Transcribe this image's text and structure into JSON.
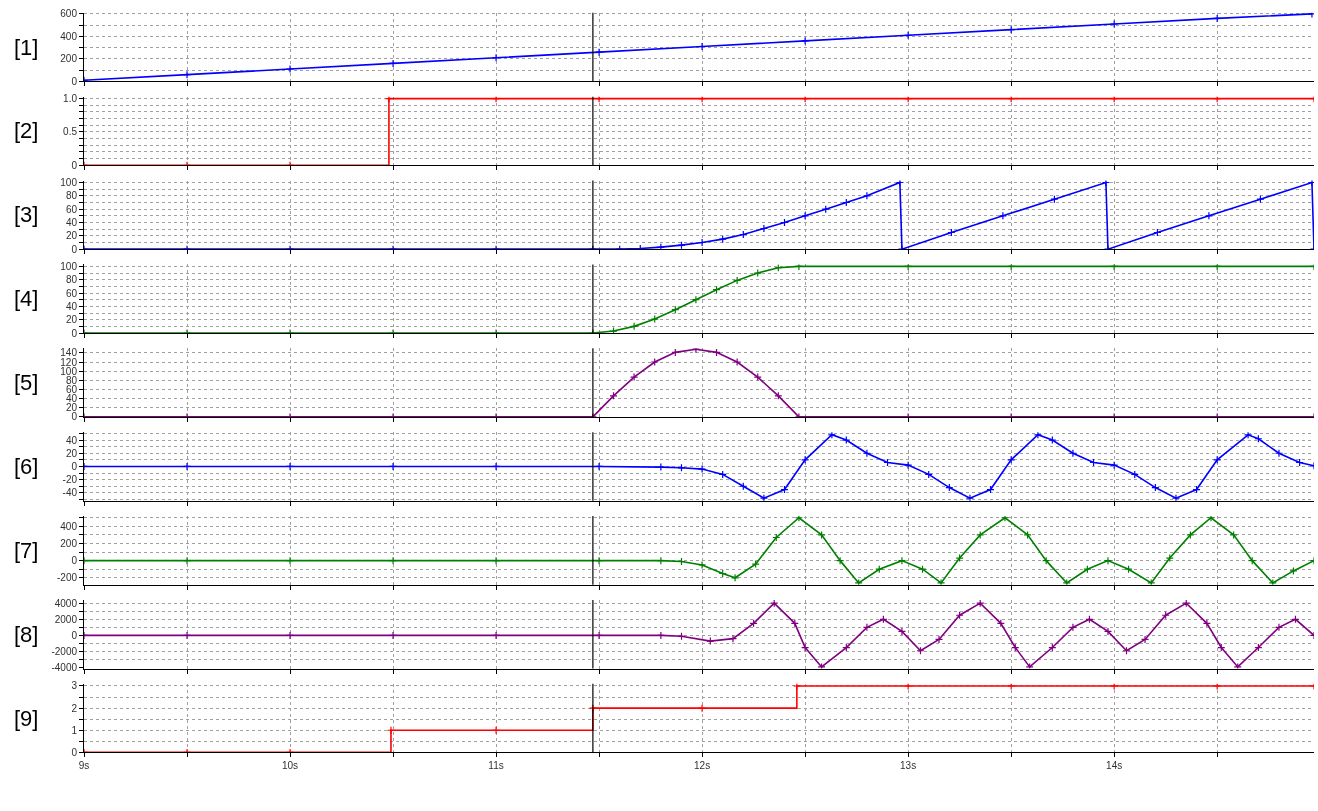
{
  "chart_data": [
    {
      "type": "line",
      "ylabel": "[1]",
      "xlim": [
        9,
        14.97
      ],
      "ylim": [
        0,
        610
      ],
      "yticks": [
        0,
        {
          "value": 100,
          "label": null
        },
        200,
        {
          "value": 300,
          "label": null
        },
        400,
        {
          "value": 500,
          "label": null
        },
        600
      ],
      "tick_labels": "y",
      "grid": true,
      "marker": "cross",
      "ref_lines": [
        {
          "axis": "x",
          "value": 11.47,
          "color": "#000000"
        }
      ],
      "series": [
        {
          "color": "#0000ff",
          "x": [
            9,
            9.5,
            10,
            10.5,
            11,
            11.5,
            12,
            12.5,
            13,
            13.5,
            14,
            14.5,
            14.96
          ],
          "values": [
            10,
            60,
            110,
            160,
            210,
            260,
            310,
            360,
            410,
            460,
            510,
            560,
            600
          ]
        }
      ]
    },
    {
      "type": "step",
      "ylabel": "[2]",
      "xlim": [
        9,
        14.97
      ],
      "ylim": [
        0,
        1.03
      ],
      "yticks": [
        0,
        {
          "value": 0.1,
          "label": null
        },
        {
          "value": 0.2,
          "label": null
        },
        {
          "value": 0.3,
          "label": null
        },
        {
          "value": 0.4,
          "label": null
        },
        0.5,
        {
          "value": 0.6,
          "label": null
        },
        {
          "value": 0.7,
          "label": null
        },
        {
          "value": 0.8,
          "label": null
        },
        {
          "value": 0.9,
          "label": null
        },
        {
          "value": 1,
          "label": "1.0"
        }
      ],
      "tick_labels": "y",
      "grid": true,
      "marker": "cross",
      "ref_lines": [
        {
          "axis": "x",
          "value": 11.47,
          "color": "#000000"
        }
      ],
      "series": [
        {
          "color": "#ff0000",
          "x": [
            9,
            9.5,
            10,
            10.48,
            11,
            11.5,
            12,
            12.5,
            13,
            13.5,
            14,
            14.5,
            14.97
          ],
          "values": [
            0,
            0,
            0,
            1,
            1,
            1,
            1,
            1,
            1,
            1,
            1,
            1,
            1
          ]
        }
      ]
    },
    {
      "type": "line",
      "ylabel": "[3]",
      "xlim": [
        9,
        14.97
      ],
      "ylim": [
        0,
        103
      ],
      "yticks": [
        0,
        {
          "value": 10,
          "label": null
        },
        20,
        {
          "value": 30,
          "label": null
        },
        40,
        {
          "value": 50,
          "label": null
        },
        60,
        {
          "value": 70,
          "label": null
        },
        80,
        {
          "value": 90,
          "label": null
        },
        100
      ],
      "tick_labels": "y",
      "grid": true,
      "marker": "cross",
      "ref_lines": [
        {
          "axis": "x",
          "value": 11.47,
          "color": "#000000"
        }
      ],
      "series": [
        {
          "color": "#0000ff",
          "x": [
            9,
            9.5,
            10,
            10.5,
            11,
            11.47,
            11.6,
            11.7,
            11.8,
            11.9,
            12.0,
            12.1,
            12.2,
            12.3,
            12.4,
            12.5,
            12.6,
            12.7,
            12.8,
            12.96,
            12.97,
            13.21,
            13.46,
            13.71,
            13.96,
            13.97,
            14.21,
            14.46,
            14.71,
            14.96,
            14.97
          ],
          "values": [
            0,
            0,
            0,
            0,
            0,
            0,
            0,
            1,
            3,
            6,
            10,
            15,
            22,
            31,
            40,
            50,
            60,
            70,
            80,
            100,
            0,
            25,
            50,
            75,
            100,
            0,
            25,
            50,
            75,
            100,
            0
          ]
        }
      ]
    },
    {
      "type": "line",
      "ylabel": "[4]",
      "xlim": [
        9,
        14.97
      ],
      "ylim": [
        0,
        103
      ],
      "yticks": [
        0,
        {
          "value": 10,
          "label": null
        },
        20,
        {
          "value": 30,
          "label": null
        },
        40,
        {
          "value": 50,
          "label": null
        },
        60,
        {
          "value": 70,
          "label": null
        },
        80,
        {
          "value": 90,
          "label": null
        },
        100
      ],
      "tick_labels": "y",
      "grid": true,
      "marker": "cross",
      "ref_lines": [
        {
          "axis": "x",
          "value": 11.47,
          "color": "#000000"
        }
      ],
      "series": [
        {
          "color": "#008000",
          "x": [
            9,
            9.5,
            10,
            10.5,
            11,
            11.47,
            11.57,
            11.67,
            11.77,
            11.87,
            11.97,
            12.07,
            12.17,
            12.27,
            12.37,
            12.47,
            13,
            13.5,
            14,
            14.5,
            14.97
          ],
          "values": [
            0,
            0,
            0,
            0,
            0,
            0,
            3,
            10,
            21,
            35,
            50,
            65,
            79,
            90,
            98,
            100,
            100,
            100,
            100,
            100,
            100
          ]
        }
      ]
    },
    {
      "type": "line",
      "ylabel": "[5]",
      "xlim": [
        9,
        14.97
      ],
      "ylim": [
        0,
        150
      ],
      "yticks": [
        0,
        20,
        40,
        60,
        80,
        100,
        120,
        140
      ],
      "tick_labels": "y",
      "grid": true,
      "marker": "cross",
      "ref_lines": [
        {
          "axis": "x",
          "value": 11.47,
          "color": "#000000"
        }
      ],
      "series": [
        {
          "color": "#800080",
          "x": [
            9,
            9.5,
            10,
            10.5,
            11,
            11.47,
            11.57,
            11.67,
            11.77,
            11.87,
            11.97,
            12.07,
            12.17,
            12.27,
            12.37,
            12.47,
            13,
            13.5,
            14,
            14.5,
            14.97
          ],
          "values": [
            0,
            0,
            0,
            0,
            0,
            0,
            46,
            87,
            120,
            141,
            148,
            141,
            120,
            87,
            46,
            0,
            0,
            0,
            0,
            0,
            0
          ]
        }
      ]
    },
    {
      "type": "line",
      "ylabel": "[6]",
      "xlim": [
        9,
        14.97
      ],
      "ylim": [
        -52,
        52
      ],
      "yticks": [
        {
          "value": -50,
          "label": null
        },
        -40,
        {
          "value": -30,
          "label": null
        },
        -20,
        {
          "value": -10,
          "label": null
        },
        0,
        {
          "value": 10,
          "label": null
        },
        20,
        {
          "value": 30,
          "label": null
        },
        40,
        {
          "value": 50,
          "label": null
        }
      ],
      "tick_labels": "y",
      "grid": true,
      "marker": "cross",
      "ref_lines": [
        {
          "axis": "x",
          "value": 11.47,
          "color": "#000000"
        }
      ],
      "series": [
        {
          "color": "#0000ff",
          "x": [
            9,
            9.5,
            10,
            10.5,
            11,
            11.5,
            11.8,
            11.9,
            12.0,
            12.1,
            12.2,
            12.3,
            12.4,
            12.5,
            12.63,
            12.7,
            12.8,
            12.9,
            13.0,
            13.1,
            13.2,
            13.3,
            13.4,
            13.5,
            13.63,
            13.7,
            13.8,
            13.9,
            14.0,
            14.1,
            14.2,
            14.3,
            14.4,
            14.5,
            14.65,
            14.7,
            14.8,
            14.9,
            14.97
          ],
          "values": [
            0,
            0,
            0,
            0,
            0,
            0,
            -1,
            -2,
            -4,
            -12,
            -30,
            -48,
            -35,
            10,
            48,
            40,
            20,
            6,
            2,
            -12,
            -32,
            -48,
            -35,
            10,
            48,
            40,
            20,
            6,
            2,
            -12,
            -32,
            -48,
            -35,
            10,
            48,
            42,
            20,
            6,
            1
          ]
        }
      ]
    },
    {
      "type": "line",
      "ylabel": "[7]",
      "xlim": [
        9,
        14.97
      ],
      "ylim": [
        -280,
        520
      ],
      "yticks": [
        -200,
        {
          "value": -100,
          "label": null
        },
        0,
        {
          "value": 100,
          "label": null
        },
        200,
        {
          "value": 300,
          "label": null
        },
        400,
        {
          "value": 500,
          "label": null
        }
      ],
      "tick_labels": "y",
      "grid": true,
      "marker": "cross",
      "ref_lines": [
        {
          "axis": "x",
          "value": 11.47,
          "color": "#000000"
        }
      ],
      "series": [
        {
          "color": "#008000",
          "x": [
            9,
            9.5,
            10,
            10.5,
            11,
            11.5,
            11.8,
            11.9,
            12.0,
            12.1,
            12.16,
            12.26,
            12.36,
            12.47,
            12.58,
            12.67,
            12.76,
            12.86,
            12.97,
            13.07,
            13.16,
            13.25,
            13.35,
            13.47,
            13.58,
            13.67,
            13.77,
            13.87,
            13.97,
            14.07,
            14.18,
            14.27,
            14.37,
            14.47,
            14.58,
            14.67,
            14.77,
            14.87,
            14.97
          ],
          "values": [
            0,
            0,
            0,
            0,
            0,
            0,
            0,
            -10,
            -50,
            -150,
            -200,
            -40,
            270,
            500,
            300,
            0,
            -260,
            -100,
            0,
            -100,
            -260,
            30,
            300,
            500,
            300,
            0,
            -260,
            -100,
            0,
            -100,
            -260,
            30,
            300,
            500,
            300,
            0,
            -260,
            -120,
            0
          ]
        }
      ]
    },
    {
      "type": "line",
      "ylabel": "[8]",
      "xlim": [
        9,
        14.97
      ],
      "ylim": [
        -4100,
        4400
      ],
      "yticks": [
        -4000,
        {
          "value": -3000,
          "label": null
        },
        -2000,
        {
          "value": -1000,
          "label": null
        },
        0,
        {
          "value": 1000,
          "label": null
        },
        2000,
        {
          "value": 3000,
          "label": null
        },
        4000
      ],
      "tick_labels": "y",
      "grid": true,
      "marker": "cross",
      "ref_lines": [
        {
          "axis": "x",
          "value": 11.47,
          "color": "#000000"
        }
      ],
      "series": [
        {
          "color": "#800080",
          "x": [
            9,
            9.5,
            10,
            10.5,
            11,
            11.5,
            11.8,
            11.9,
            12.04,
            12.15,
            12.25,
            12.35,
            12.45,
            12.5,
            12.58,
            12.7,
            12.8,
            12.88,
            12.97,
            13.06,
            13.15,
            13.25,
            13.35,
            13.45,
            13.52,
            13.59,
            13.7,
            13.8,
            13.88,
            13.97,
            14.06,
            14.15,
            14.25,
            14.35,
            14.45,
            14.52,
            14.6,
            14.7,
            14.8,
            14.88,
            14.97
          ],
          "values": [
            0,
            0,
            0,
            0,
            0,
            0,
            0,
            -100,
            -700,
            -400,
            1500,
            4000,
            1500,
            -1500,
            -3900,
            -1500,
            1000,
            2000,
            500,
            -1900,
            -500,
            2500,
            4000,
            1500,
            -1500,
            -3900,
            -1500,
            1000,
            2000,
            500,
            -1900,
            -500,
            2500,
            4000,
            1500,
            -1500,
            -3900,
            -1500,
            1000,
            2000,
            0
          ]
        }
      ]
    },
    {
      "type": "step",
      "ylabel": "[9]",
      "xlim": [
        9,
        14.97
      ],
      "xticks": [
        {
          "value": 9,
          "label": "9s"
        },
        {
          "value": 9.5,
          "label": null
        },
        {
          "value": 10,
          "label": "10s"
        },
        {
          "value": 10.5,
          "label": null
        },
        {
          "value": 11,
          "label": "11s"
        },
        {
          "value": 11.5,
          "label": null
        },
        {
          "value": 12,
          "label": "12s"
        },
        {
          "value": 12.5,
          "label": null
        },
        {
          "value": 13,
          "label": "13s"
        },
        {
          "value": 13.5,
          "label": null
        },
        {
          "value": 14,
          "label": "14s"
        },
        {
          "value": 14.5,
          "label": null
        }
      ],
      "ylim": [
        0,
        3.1
      ],
      "yticks": [
        0,
        {
          "value": 0.5,
          "label": null
        },
        1,
        {
          "value": 1.5,
          "label": null
        },
        2,
        {
          "value": 2.5,
          "label": null
        },
        3
      ],
      "grid": true,
      "marker": "cross",
      "ref_lines": [
        {
          "axis": "x",
          "value": 11.47,
          "color": "#000000"
        }
      ],
      "series": [
        {
          "color": "#ff0000",
          "x": [
            9,
            9.5,
            10,
            10.49,
            11,
            11.47,
            12,
            12.46,
            13,
            13.5,
            14,
            14.5,
            14.97
          ],
          "values": [
            0,
            0,
            0,
            1,
            1,
            2,
            2,
            3,
            3,
            3,
            3,
            3,
            3
          ]
        }
      ]
    }
  ]
}
